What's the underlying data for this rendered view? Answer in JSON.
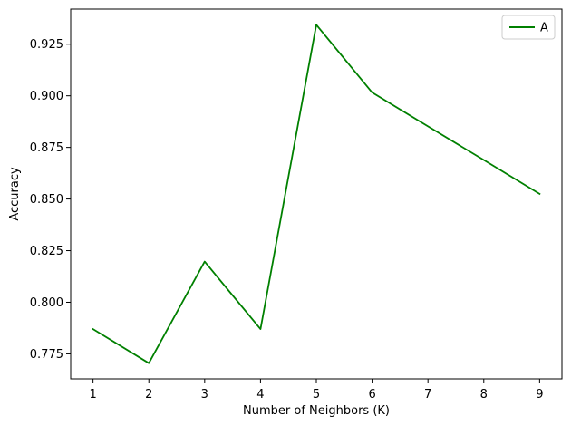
{
  "chart_data": {
    "type": "line",
    "title": "",
    "xlabel": "Number of Neighbors (K)",
    "ylabel": "Accuracy",
    "x": [
      1,
      2,
      3,
      4,
      5,
      6,
      7,
      8,
      9
    ],
    "x_ticks": [
      "1",
      "2",
      "3",
      "4",
      "5",
      "6",
      "7",
      "8",
      "9"
    ],
    "y_ticks": [
      "0.775",
      "0.800",
      "0.825",
      "0.850",
      "0.875",
      "0.900",
      "0.925"
    ],
    "xlim": [
      0.6,
      9.4
    ],
    "ylim": [
      0.7629,
      0.942
    ],
    "grid": false,
    "legend_position": "top-right",
    "series": [
      {
        "name": "A",
        "color": "#008000",
        "values": [
          0.787,
          0.7705,
          0.8197,
          0.787,
          0.9344,
          0.9016,
          0.8852,
          0.8689,
          0.8525
        ]
      }
    ]
  }
}
